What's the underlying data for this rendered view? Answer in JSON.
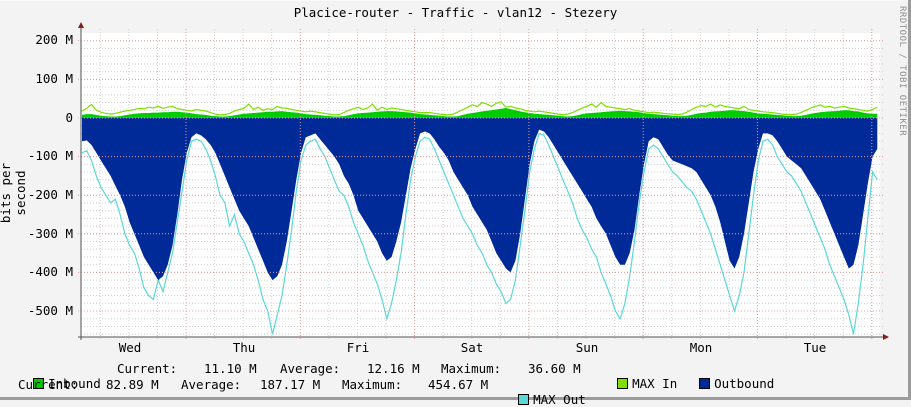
{
  "title": "Placice-router - Traffic - vlan12 - Stezery",
  "watermark": "RRDTOOL / TOBI OETIKER",
  "colors": {
    "background": "#f3f3f3",
    "plot_bg": "#ffffff",
    "inbound": "#00cc00",
    "max_in": "#7ee000",
    "outbound": "#002a97",
    "max_out": "#5ad7d7",
    "major_grid": "#e0a0a0",
    "minor_grid": "#d0d0d0",
    "axis": "#505050",
    "arrow": "#8b1a1a"
  },
  "legend": {
    "inbound": {
      "label": "Inbound",
      "color": "#00cc00"
    },
    "inbound_stats": {
      "current_label": "Current:",
      "current": "11.10 M",
      "average_label": "Average:",
      "average": "12.16 M",
      "maximum_label": "Maximum:",
      "maximum": "36.60 M"
    },
    "max_in": {
      "label": "MAX In",
      "color": "#7ee000"
    },
    "outbound": {
      "label": "Outbound",
      "color": "#002a97"
    },
    "outbound_stats": {
      "current_label": "Current:",
      "current": "82.89 M",
      "average_label": "Average:",
      "average": "187.17 M",
      "maximum_label": "Maximum:",
      "maximum": "454.67 M"
    },
    "max_out": {
      "label": "MAX Out",
      "color": "#5ad7d7"
    }
  },
  "chart_data": {
    "type": "area",
    "title": "Placice-router - Traffic - vlan12 - Stezery",
    "xlabel": "",
    "ylabel": "bits per second",
    "ylim": [
      -560,
      205
    ],
    "y_unit": "M",
    "y_ticks": [
      "200 M",
      "100 M",
      "0",
      "-100 M",
      "-200 M",
      "-300 M",
      "-400 M",
      "-500 M"
    ],
    "y_tick_values": [
      200,
      100,
      0,
      -100,
      -200,
      -300,
      -400,
      -500
    ],
    "x_ticks": [
      "Wed",
      "Thu",
      "Fri",
      "Sat",
      "Sun",
      "Mon",
      "Tue"
    ],
    "grid": true,
    "legend_position": "bottom",
    "samples_per_day": 24,
    "series": [
      {
        "name": "Inbound",
        "style": "area",
        "color": "#00cc00",
        "values": [
          8,
          10,
          10,
          8,
          6,
          5,
          4,
          4,
          5,
          7,
          9,
          11,
          12,
          13,
          13,
          14,
          14,
          15,
          15,
          16,
          16,
          15,
          14,
          12,
          10,
          9,
          8,
          6,
          5,
          4,
          4,
          5,
          7,
          9,
          11,
          12,
          13,
          14,
          15,
          16,
          16,
          17,
          18,
          16,
          15,
          14,
          12,
          10,
          9,
          8,
          7,
          6,
          5,
          4,
          4,
          5,
          7,
          10,
          12,
          13,
          14,
          15,
          16,
          17,
          18,
          18,
          17,
          16,
          15,
          14,
          12,
          10,
          9,
          8,
          7,
          6,
          5,
          4,
          4,
          5,
          8,
          11,
          13,
          15,
          17,
          19,
          20,
          22,
          24,
          26,
          23,
          20,
          17,
          15,
          13,
          11,
          10,
          9,
          8,
          7,
          6,
          5,
          4,
          5,
          7,
          10,
          12,
          13,
          14,
          15,
          16,
          17,
          18,
          19,
          18,
          17,
          16,
          15,
          13,
          11,
          10,
          9,
          8,
          7,
          6,
          5,
          5,
          6,
          8,
          11,
          13,
          14,
          16,
          17,
          18,
          19,
          20,
          20,
          19,
          18,
          16,
          14,
          12,
          11,
          10,
          9,
          8,
          7,
          6,
          5,
          5,
          6,
          8,
          11,
          13,
          15,
          16,
          17,
          18,
          19,
          20,
          20,
          18,
          17,
          14,
          12,
          11,
          11
        ]
      },
      {
        "name": "MAX In",
        "style": "line",
        "color": "#7ee000",
        "values": [
          18,
          25,
          35,
          20,
          15,
          12,
          10,
          12,
          15,
          18,
          20,
          22,
          25,
          24,
          28,
          26,
          30,
          25,
          28,
          30,
          24,
          22,
          20,
          18,
          22,
          20,
          18,
          14,
          10,
          8,
          9,
          12,
          18,
          22,
          25,
          36,
          22,
          28,
          20,
          24,
          22,
          30,
          26,
          25,
          22,
          20,
          18,
          16,
          18,
          16,
          14,
          12,
          10,
          8,
          9,
          14,
          20,
          24,
          28,
          22,
          26,
          36,
          20,
          28,
          22,
          26,
          24,
          22,
          20,
          18,
          16,
          14,
          14,
          14,
          12,
          10,
          9,
          8,
          10,
          16,
          22,
          28,
          34,
          30,
          40,
          36,
          30,
          38,
          42,
          28,
          30,
          26,
          24,
          20,
          18,
          16,
          18,
          16,
          14,
          12,
          10,
          9,
          10,
          14,
          20,
          26,
          30,
          36,
          28,
          40,
          30,
          28,
          26,
          24,
          22,
          24,
          20,
          18,
          16,
          14,
          15,
          14,
          12,
          11,
          10,
          9,
          10,
          15,
          22,
          28,
          32,
          30,
          36,
          28,
          34,
          30,
          28,
          26,
          24,
          30,
          22,
          20,
          18,
          16,
          15,
          14,
          12,
          10,
          9,
          9,
          10,
          14,
          20,
          26,
          30,
          34,
          28,
          30,
          26,
          28,
          30,
          26,
          24,
          22,
          20,
          18,
          22,
          28
        ]
      },
      {
        "name": "Outbound",
        "style": "area",
        "color": "#002a97",
        "values": [
          -60,
          -58,
          -70,
          -90,
          -110,
          -130,
          -150,
          -175,
          -200,
          -230,
          -270,
          -300,
          -330,
          -360,
          -380,
          -400,
          -420,
          -410,
          -380,
          -330,
          -250,
          -160,
          -90,
          -50,
          -40,
          -45,
          -55,
          -70,
          -90,
          -120,
          -150,
          -180,
          -210,
          -240,
          -260,
          -280,
          -310,
          -340,
          -370,
          -400,
          -420,
          -410,
          -380,
          -320,
          -240,
          -160,
          -90,
          -50,
          -45,
          -40,
          -55,
          -70,
          -85,
          -100,
          -120,
          -150,
          -170,
          -200,
          -240,
          -260,
          -280,
          -300,
          -320,
          -350,
          -370,
          -360,
          -320,
          -270,
          -200,
          -130,
          -80,
          -40,
          -35,
          -40,
          -55,
          -75,
          -90,
          -110,
          -140,
          -160,
          -180,
          -200,
          -230,
          -250,
          -270,
          -290,
          -320,
          -350,
          -370,
          -390,
          -400,
          -370,
          -300,
          -210,
          -120,
          -60,
          -30,
          -35,
          -50,
          -70,
          -90,
          -110,
          -130,
          -150,
          -170,
          -190,
          -210,
          -230,
          -260,
          -280,
          -300,
          -330,
          -360,
          -380,
          -380,
          -350,
          -290,
          -200,
          -120,
          -60,
          -50,
          -55,
          -75,
          -95,
          -110,
          -115,
          -120,
          -125,
          -130,
          -140,
          -160,
          -180,
          -200,
          -230,
          -270,
          -320,
          -370,
          -390,
          -360,
          -300,
          -220,
          -140,
          -80,
          -40,
          -40,
          -45,
          -60,
          -80,
          -100,
          -110,
          -120,
          -130,
          -150,
          -170,
          -190,
          -210,
          -240,
          -270,
          -300,
          -330,
          -360,
          -390,
          -380,
          -330,
          -250,
          -170,
          -100,
          -80
        ]
      },
      {
        "name": "MAX Out",
        "style": "line",
        "color": "#5ad7d7",
        "values": [
          -90,
          -85,
          -110,
          -150,
          -180,
          -200,
          -220,
          -210,
          -250,
          -300,
          -330,
          -350,
          -390,
          -440,
          -460,
          -470,
          -420,
          -450,
          -400,
          -350,
          -270,
          -190,
          -110,
          -60,
          -55,
          -60,
          -80,
          -110,
          -150,
          -200,
          -220,
          -280,
          -250,
          -300,
          -320,
          -350,
          -380,
          -420,
          -470,
          -500,
          -560,
          -510,
          -460,
          -380,
          -290,
          -190,
          -110,
          -70,
          -60,
          -55,
          -80,
          -100,
          -130,
          -160,
          -190,
          -200,
          -230,
          -270,
          -300,
          -330,
          -370,
          -400,
          -430,
          -470,
          -520,
          -480,
          -420,
          -350,
          -250,
          -160,
          -100,
          -60,
          -50,
          -55,
          -80,
          -110,
          -140,
          -170,
          -200,
          -230,
          -260,
          -280,
          -300,
          -330,
          -350,
          -380,
          -400,
          -430,
          -450,
          -480,
          -470,
          -420,
          -330,
          -240,
          -140,
          -80,
          -40,
          -45,
          -70,
          -100,
          -130,
          -160,
          -190,
          -220,
          -260,
          -290,
          -310,
          -340,
          -360,
          -400,
          -430,
          -460,
          -500,
          -520,
          -480,
          -410,
          -320,
          -220,
          -140,
          -80,
          -70,
          -80,
          -100,
          -120,
          -140,
          -150,
          -165,
          -180,
          -190,
          -210,
          -240,
          -270,
          -300,
          -340,
          -380,
          -420,
          -460,
          -500,
          -460,
          -400,
          -300,
          -200,
          -110,
          -60,
          -55,
          -70,
          -100,
          -120,
          -140,
          -150,
          -170,
          -190,
          -220,
          -250,
          -280,
          -310,
          -340,
          -380,
          -410,
          -440,
          -470,
          -510,
          -560,
          -480,
          -380,
          -260,
          -140,
          -160
        ]
      }
    ]
  },
  "axis_labels": {
    "ylabel": "bits per second",
    "y_ticks": [
      "200 M",
      "100 M",
      "0",
      "-100 M",
      "-200 M",
      "-300 M",
      "-400 M",
      "-500 M"
    ],
    "x_ticks": [
      "Wed",
      "Thu",
      "Fri",
      "Sat",
      "Sun",
      "Mon",
      "Tue"
    ]
  }
}
